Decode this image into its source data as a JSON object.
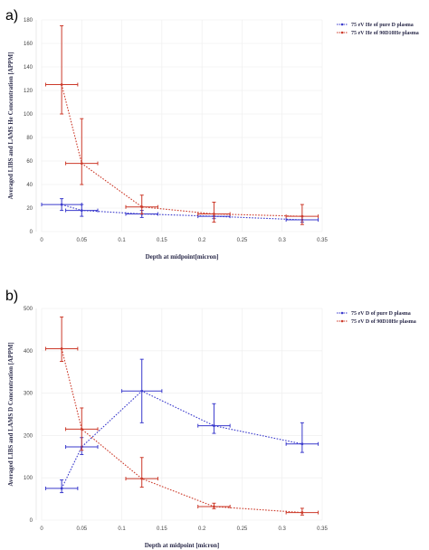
{
  "chart_data": [
    {
      "panel_label": "a)",
      "type": "line",
      "xlabel": "Depth at midpoint[micron]",
      "ylabel": "Averaged LIBS and LAMS He Concentration [APPM]",
      "xlim": [
        0,
        0.35
      ],
      "ylim": [
        0,
        180
      ],
      "xticks": [
        0,
        0.05,
        0.1,
        0.15,
        0.2,
        0.25,
        0.3,
        0.35
      ],
      "xtick_labels": [
        "0",
        "0.05",
        "0.1",
        "0.15",
        "0.2",
        "0.25",
        "0.3",
        "0.35"
      ],
      "yticks": [
        0,
        20,
        40,
        60,
        80,
        100,
        120,
        140,
        160,
        180
      ],
      "ytick_labels": [
        "0",
        "20",
        "40",
        "60",
        "80",
        "100",
        "120",
        "140",
        "160",
        "180"
      ],
      "grid": true,
      "legend_position": "top-right",
      "series": [
        {
          "name": "75 eV He of pure D plasma",
          "color": "#3a3acc",
          "x": [
            0.025,
            0.05,
            0.125,
            0.215,
            0.325
          ],
          "y": [
            23,
            18,
            15,
            13,
            10
          ],
          "x_err": [
            0.025,
            0.02,
            0.02,
            0.02,
            0.02
          ],
          "y_lo": [
            18,
            13,
            12,
            11,
            8
          ],
          "y_hi": [
            28,
            23,
            18,
            15,
            13
          ]
        },
        {
          "name": "75 eV He of 90D10He plasma",
          "color": "#cc3a2a",
          "x": [
            0.025,
            0.05,
            0.125,
            0.215,
            0.325
          ],
          "y": [
            125,
            58,
            21,
            15,
            13
          ],
          "x_err": [
            0.02,
            0.02,
            0.02,
            0.02,
            0.02
          ],
          "y_lo": [
            100,
            40,
            15,
            8,
            6
          ],
          "y_hi": [
            175,
            96,
            31,
            25,
            23
          ]
        }
      ]
    },
    {
      "panel_label": "b)",
      "type": "line",
      "xlabel": "Depth at midpoint [micron]",
      "ylabel": "Averaged LIBS and LAMS D Concentration [APPM]",
      "xlim": [
        0,
        0.35
      ],
      "ylim": [
        0,
        500
      ],
      "xticks": [
        0,
        0.05,
        0.1,
        0.15,
        0.2,
        0.25,
        0.3,
        0.35
      ],
      "xtick_labels": [
        "0",
        "0.05",
        "0.1",
        "0.15",
        "0.2",
        "0.25",
        "0.3",
        "0.35"
      ],
      "yticks": [
        0,
        100,
        200,
        300,
        400,
        500
      ],
      "ytick_labels": [
        "0",
        "100",
        "200",
        "300",
        "400",
        "500"
      ],
      "grid": true,
      "legend_position": "top-right",
      "series": [
        {
          "name": "75 eV D of pure D plasma",
          "color": "#3a3acc",
          "x": [
            0.025,
            0.05,
            0.125,
            0.215,
            0.325
          ],
          "y": [
            75,
            173,
            305,
            223,
            180
          ],
          "x_err": [
            0.02,
            0.02,
            0.025,
            0.02,
            0.02
          ],
          "y_lo": [
            65,
            155,
            230,
            205,
            160
          ],
          "y_hi": [
            95,
            195,
            380,
            275,
            230
          ]
        },
        {
          "name": "75 eV D of 90D10He plasma",
          "color": "#cc3a2a",
          "x": [
            0.025,
            0.05,
            0.125,
            0.215,
            0.325
          ],
          "y": [
            405,
            215,
            98,
            32,
            18
          ],
          "x_err": [
            0.02,
            0.02,
            0.02,
            0.02,
            0.02
          ],
          "y_lo": [
            375,
            165,
            78,
            27,
            12
          ],
          "y_hi": [
            480,
            265,
            148,
            40,
            28
          ]
        }
      ]
    }
  ]
}
